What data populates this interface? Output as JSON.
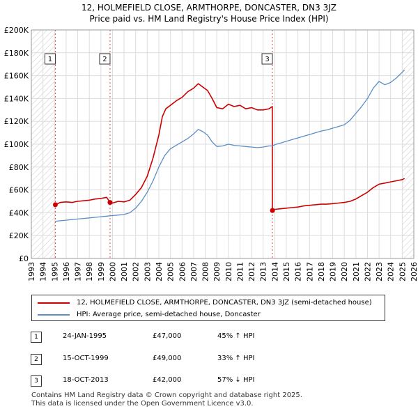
{
  "title_line1": "12, HOLMEFIELD CLOSE, ARMTHORPE, DONCASTER, DN3 3JZ",
  "title_line2": "Price paid vs. HM Land Registry's House Price Index (HPI)",
  "chart_data": {
    "type": "line",
    "ylim": [
      0,
      200000
    ],
    "xlim": [
      1993,
      2026
    ],
    "y_ticks": [
      {
        "v": 0,
        "label": "£0"
      },
      {
        "v": 20000,
        "label": "£20K"
      },
      {
        "v": 40000,
        "label": "£40K"
      },
      {
        "v": 60000,
        "label": "£60K"
      },
      {
        "v": 80000,
        "label": "£80K"
      },
      {
        "v": 100000,
        "label": "£100K"
      },
      {
        "v": 120000,
        "label": "£120K"
      },
      {
        "v": 140000,
        "label": "£140K"
      },
      {
        "v": 160000,
        "label": "£160K"
      },
      {
        "v": 180000,
        "label": "£180K"
      },
      {
        "v": 200000,
        "label": "£200K"
      }
    ],
    "x_ticks": [
      "1993",
      "1994",
      "1995",
      "1996",
      "1997",
      "1998",
      "1999",
      "2000",
      "2001",
      "2002",
      "2003",
      "2004",
      "2005",
      "2006",
      "2007",
      "2008",
      "2009",
      "2010",
      "2011",
      "2012",
      "2013",
      "2014",
      "2015",
      "2016",
      "2017",
      "2018",
      "2019",
      "2020",
      "2021",
      "2022",
      "2023",
      "2024",
      "2025",
      "2026"
    ],
    "hatched_ranges": [
      [
        1993,
        1995.07
      ],
      [
        2025.0,
        2026
      ]
    ],
    "series": [
      {
        "name": "12, HOLMEFIELD CLOSE, ARMTHORPE, DONCASTER, DN3 3JZ (semi-detached house)",
        "color": "#cc0000",
        "points": [
          [
            1995.07,
            47000
          ],
          [
            1995.5,
            49000
          ],
          [
            1996,
            49500
          ],
          [
            1996.5,
            49000
          ],
          [
            1997,
            50000
          ],
          [
            1997.5,
            50500
          ],
          [
            1998,
            51000
          ],
          [
            1998.5,
            52000
          ],
          [
            1999,
            52500
          ],
          [
            1999.5,
            53500
          ],
          [
            1999.79,
            49000
          ],
          [
            2000,
            48500
          ],
          [
            2000.5,
            50000
          ],
          [
            2001,
            49500
          ],
          [
            2001.5,
            51000
          ],
          [
            2002,
            56000
          ],
          [
            2002.5,
            62000
          ],
          [
            2003,
            72000
          ],
          [
            2003.5,
            88000
          ],
          [
            2004,
            108000
          ],
          [
            2004.3,
            124000
          ],
          [
            2004.6,
            131000
          ],
          [
            2005,
            134000
          ],
          [
            2005.5,
            138000
          ],
          [
            2006,
            141000
          ],
          [
            2006.5,
            146000
          ],
          [
            2007,
            149000
          ],
          [
            2007.4,
            153000
          ],
          [
            2007.8,
            150000
          ],
          [
            2008.2,
            147000
          ],
          [
            2008.6,
            140000
          ],
          [
            2009,
            132000
          ],
          [
            2009.5,
            131000
          ],
          [
            2010,
            135000
          ],
          [
            2010.5,
            133000
          ],
          [
            2011,
            134000
          ],
          [
            2011.5,
            131000
          ],
          [
            2012,
            132000
          ],
          [
            2012.5,
            130000
          ],
          [
            2013,
            130000
          ],
          [
            2013.5,
            131000
          ],
          [
            2013.79,
            133000
          ],
          [
            2013.8,
            42000
          ],
          [
            2014,
            43000
          ],
          [
            2014.5,
            43500
          ],
          [
            2015,
            44000
          ],
          [
            2015.5,
            44500
          ],
          [
            2016,
            45000
          ],
          [
            2016.5,
            46000
          ],
          [
            2017,
            46500
          ],
          [
            2017.5,
            47000
          ],
          [
            2018,
            47500
          ],
          [
            2018.5,
            47500
          ],
          [
            2019,
            48000
          ],
          [
            2019.5,
            48500
          ],
          [
            2020,
            49000
          ],
          [
            2020.5,
            50000
          ],
          [
            2021,
            52000
          ],
          [
            2021.5,
            55000
          ],
          [
            2022,
            58000
          ],
          [
            2022.5,
            62000
          ],
          [
            2023,
            65000
          ],
          [
            2023.5,
            66000
          ],
          [
            2024,
            67000
          ],
          [
            2024.5,
            68000
          ],
          [
            2025,
            69000
          ],
          [
            2025.2,
            70000
          ]
        ]
      },
      {
        "name": "HPI: Average price, semi-detached house, Doncaster",
        "color": "#5b8ec5",
        "points": [
          [
            1995.07,
            32500
          ],
          [
            1995.5,
            33000
          ],
          [
            1996,
            33500
          ],
          [
            1996.5,
            34000
          ],
          [
            1997,
            34500
          ],
          [
            1997.5,
            35000
          ],
          [
            1998,
            35500
          ],
          [
            1998.5,
            36000
          ],
          [
            1999,
            36500
          ],
          [
            1999.5,
            37000
          ],
          [
            2000,
            37500
          ],
          [
            2000.5,
            38000
          ],
          [
            2001,
            38500
          ],
          [
            2001.5,
            40000
          ],
          [
            2002,
            44000
          ],
          [
            2002.5,
            50000
          ],
          [
            2003,
            58000
          ],
          [
            2003.5,
            68000
          ],
          [
            2004,
            80000
          ],
          [
            2004.5,
            90000
          ],
          [
            2005,
            96000
          ],
          [
            2005.5,
            99000
          ],
          [
            2006,
            102000
          ],
          [
            2006.5,
            105000
          ],
          [
            2007,
            109000
          ],
          [
            2007.4,
            113000
          ],
          [
            2007.8,
            111000
          ],
          [
            2008.2,
            108000
          ],
          [
            2008.6,
            102000
          ],
          [
            2009,
            98000
          ],
          [
            2009.5,
            98500
          ],
          [
            2010,
            100000
          ],
          [
            2010.5,
            99000
          ],
          [
            2011,
            98500
          ],
          [
            2011.5,
            98000
          ],
          [
            2012,
            97500
          ],
          [
            2012.5,
            97000
          ],
          [
            2013,
            97500
          ],
          [
            2013.5,
            98500
          ],
          [
            2013.79,
            98500
          ],
          [
            2014,
            99500
          ],
          [
            2014.5,
            101000
          ],
          [
            2015,
            102500
          ],
          [
            2015.5,
            104000
          ],
          [
            2016,
            105500
          ],
          [
            2016.5,
            107000
          ],
          [
            2017,
            108500
          ],
          [
            2017.5,
            110000
          ],
          [
            2018,
            111500
          ],
          [
            2018.5,
            112500
          ],
          [
            2019,
            114000
          ],
          [
            2019.5,
            115500
          ],
          [
            2020,
            117000
          ],
          [
            2020.5,
            121000
          ],
          [
            2021,
            127000
          ],
          [
            2021.5,
            133000
          ],
          [
            2022,
            140000
          ],
          [
            2022.5,
            149000
          ],
          [
            2023,
            155000
          ],
          [
            2023.5,
            152000
          ],
          [
            2024,
            154000
          ],
          [
            2024.5,
            158000
          ],
          [
            2025,
            163000
          ],
          [
            2025.2,
            165000
          ]
        ]
      }
    ],
    "markers": [
      {
        "label": "1",
        "x": 1995.07,
        "y": 47000
      },
      {
        "label": "2",
        "x": 1999.79,
        "y": 49000
      },
      {
        "label": "3",
        "x": 2013.8,
        "y": 42000
      }
    ]
  },
  "legend": {
    "red_label": "12, HOLMEFIELD CLOSE, ARMTHORPE, DONCASTER, DN3 3JZ (semi-detached house)",
    "blue_label": "HPI: Average price, semi-detached house, Doncaster",
    "red_color": "#cc0000",
    "blue_color": "#5b8ec5"
  },
  "table": [
    {
      "num": "1",
      "date": "24-JAN-1995",
      "price": "£47,000",
      "hpi": "45% ↑ HPI"
    },
    {
      "num": "2",
      "date": "15-OCT-1999",
      "price": "£49,000",
      "hpi": "33% ↑ HPI"
    },
    {
      "num": "3",
      "date": "18-OCT-2013",
      "price": "£42,000",
      "hpi": "57% ↓ HPI"
    }
  ],
  "footer_line1": "Contains HM Land Registry data © Crown copyright and database right 2025.",
  "footer_line2": "This data is licensed under the Open Government Licence v3.0."
}
